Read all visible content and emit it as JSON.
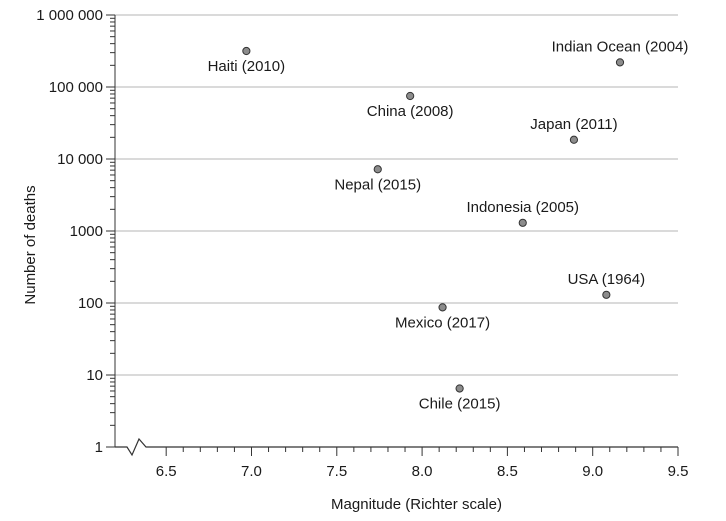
{
  "chart_data": {
    "type": "scatter",
    "title": "",
    "xlabel": "Magnitude (Richter scale)",
    "ylabel": "Number of deaths",
    "x_scale": "linear",
    "y_scale": "log",
    "xlim": [
      6.2,
      9.5
    ],
    "ylim": [
      1,
      1000000
    ],
    "x_axis_break": true,
    "grid": "horizontal",
    "x_ticks": [
      {
        "value": 6.5,
        "label": "6.5"
      },
      {
        "value": 7.0,
        "label": "7.0"
      },
      {
        "value": 7.5,
        "label": "7.5"
      },
      {
        "value": 8.0,
        "label": "8.0"
      },
      {
        "value": 8.5,
        "label": "8.5"
      },
      {
        "value": 9.0,
        "label": "9.0"
      },
      {
        "value": 9.5,
        "label": "9.5"
      }
    ],
    "y_ticks": [
      {
        "value": 1,
        "label": "1"
      },
      {
        "value": 10,
        "label": "10"
      },
      {
        "value": 100,
        "label": "100"
      },
      {
        "value": 1000,
        "label": "1000"
      },
      {
        "value": 10000,
        "label": "10 000"
      },
      {
        "value": 100000,
        "label": "100 000"
      },
      {
        "value": 1000000,
        "label": "1 000 000"
      }
    ],
    "points": [
      {
        "label": "Haiti (2010)",
        "x": 6.97,
        "y": 316000,
        "label_pos": "below"
      },
      {
        "label": "China (2008)",
        "x": 7.93,
        "y": 75000,
        "label_pos": "below"
      },
      {
        "label": "Nepal (2015)",
        "x": 7.74,
        "y": 7200,
        "label_pos": "below"
      },
      {
        "label": "Indian Ocean (2004)",
        "x": 9.16,
        "y": 220000,
        "label_pos": "above"
      },
      {
        "label": "Japan (2011)",
        "x": 8.89,
        "y": 18500,
        "label_pos": "above"
      },
      {
        "label": "Indonesia (2005)",
        "x": 8.59,
        "y": 1300,
        "label_pos": "above"
      },
      {
        "label": "USA (1964)",
        "x": 9.08,
        "y": 130,
        "label_pos": "above"
      },
      {
        "label": "Mexico (2017)",
        "x": 8.12,
        "y": 87,
        "label_pos": "below"
      },
      {
        "label": "Chile (2015)",
        "x": 8.22,
        "y": 6.5,
        "label_pos": "below"
      }
    ],
    "colors": {
      "point_fill": "#8c8c8c",
      "point_stroke": "#333333",
      "grid": "#b5b5b5",
      "axis": "#333333"
    }
  }
}
